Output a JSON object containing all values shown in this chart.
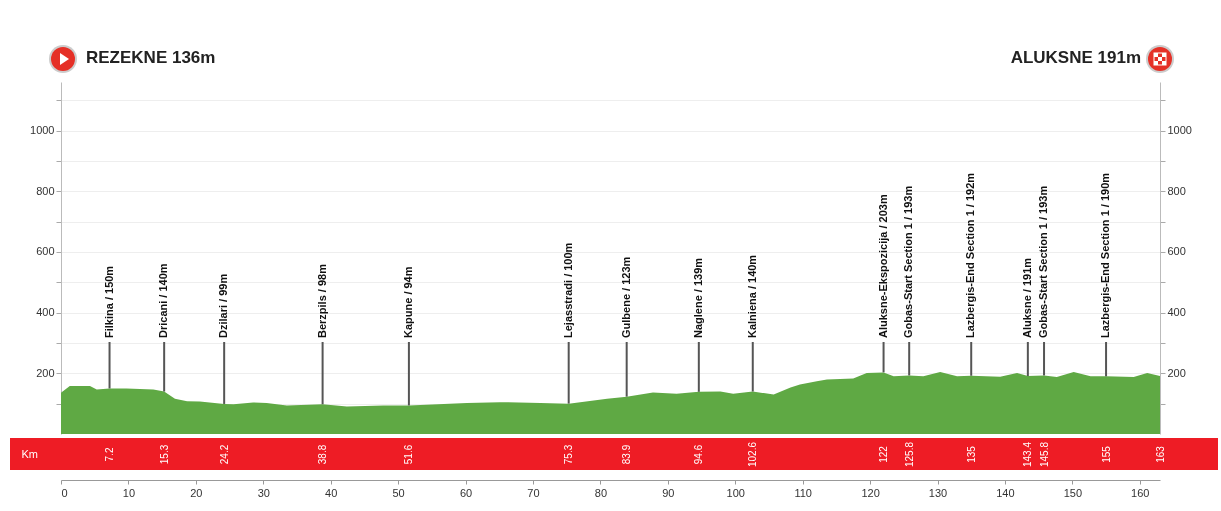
{
  "chart_data": {
    "type": "area",
    "color": "#5fa944",
    "x": [
      0,
      1.3,
      4.3,
      5.3,
      7.2,
      9.7,
      13.7,
      15.3,
      16.9,
      18.7,
      20.6,
      24.2,
      25.6,
      28.5,
      30.5,
      33.5,
      38.8,
      42.4,
      47.8,
      51.6,
      60.2,
      65.1,
      71.1,
      75.3,
      81,
      83.9,
      87.8,
      91.3,
      94.6,
      97.8,
      99.7,
      102.6,
      105.7,
      108.2,
      109.6,
      112.1,
      113.6,
      117.5,
      119.5,
      122,
      123.5,
      125.8,
      127.9,
      130.4,
      132.9,
      135,
      139.3,
      141.8,
      143.4,
      145.8,
      147.7,
      150.2,
      152.7,
      155,
      159.1,
      161.1,
      163
    ],
    "values": [
      136,
      158,
      158,
      147,
      150,
      150,
      147,
      140,
      116,
      108,
      107,
      99,
      98,
      104,
      102,
      94,
      98,
      91,
      94,
      94,
      102,
      105,
      102,
      100,
      116,
      123,
      137,
      133,
      139,
      140,
      133,
      140,
      130,
      153,
      163,
      174,
      180,
      183,
      201,
      203,
      190,
      193,
      190,
      204,
      190,
      192,
      189,
      201,
      191,
      193,
      188,
      204,
      190,
      190,
      188,
      201,
      191
    ],
    "xlim": [
      0,
      163
    ],
    "xticks": [
      0,
      10,
      20,
      30,
      40,
      50,
      60,
      70,
      80,
      90,
      100,
      110,
      120,
      130,
      140,
      150,
      160
    ],
    "ylim": [
      0,
      1160
    ],
    "yticks": [
      {
        "value": 100,
        "label": null
      },
      200,
      {
        "value": 300,
        "label": null
      },
      400,
      {
        "value": 500,
        "label": null
      },
      600,
      {
        "value": 700,
        "label": null
      },
      800,
      {
        "value": 900,
        "label": null
      },
      1000,
      {
        "value": 1100,
        "label": null
      }
    ],
    "y2lim": [
      0,
      1160
    ],
    "y2ticks": [
      {
        "value": 100,
        "label": null
      },
      200,
      {
        "value": 300,
        "label": null
      },
      400,
      {
        "value": 500,
        "label": null
      },
      600,
      {
        "value": 700,
        "label": null
      },
      800,
      {
        "value": 900,
        "label": null
      },
      1000,
      {
        "value": 1100,
        "label": null
      }
    ],
    "x2label": "Km",
    "x2lim": [
      0,
      163
    ],
    "x2ticks": [
      7.2,
      15.3,
      24.2,
      38.8,
      51.6,
      75.3,
      83.9,
      94.6,
      102.6,
      122,
      125.8,
      135,
      143.4,
      145.8,
      155,
      163
    ],
    "grid": "y",
    "annotations": [
      "REZEKNE 136m",
      "ALUKSNE 191m",
      {
        "text": "Filkina / 150m",
        "x": 7.2,
        "y": 150
      },
      {
        "text": "Dricani / 140m",
        "x": 15.3,
        "y": 140
      },
      {
        "text": "Dzilari / 99m",
        "x": 24.2,
        "y": 99
      },
      {
        "text": "Berzpils / 98m",
        "x": 38.8,
        "y": 98
      },
      {
        "text": "Kapune / 94m",
        "x": 51.6,
        "y": 94
      },
      {
        "text": "Lejasstradi / 100m",
        "x": 75.3,
        "y": 100
      },
      {
        "text": "Gulbene / 123m",
        "x": 83.9,
        "y": 123
      },
      {
        "text": "Naglene / 139m",
        "x": 94.6,
        "y": 139
      },
      {
        "text": "Kalniena / 140m",
        "x": 102.6,
        "y": 140
      },
      {
        "text": "Aluksne-Ekspozicija / 203m",
        "x": 122,
        "y": 203
      },
      {
        "text": "Gobas-Start Section 1 / 193m",
        "x": 125.8,
        "y": 193
      },
      {
        "text": "Lazbergis-End Section 1 / 192m",
        "x": 135,
        "y": 192
      },
      {
        "text": "Aluksne / 191m",
        "x": 143.4,
        "y": 191
      },
      {
        "text": "Gobas-Start Section 1 / 193m",
        "x": 145.8,
        "y": 193
      },
      {
        "text": "Lazbergis-End Section 1 / 190m",
        "x": 155,
        "y": 190
      }
    ]
  }
}
